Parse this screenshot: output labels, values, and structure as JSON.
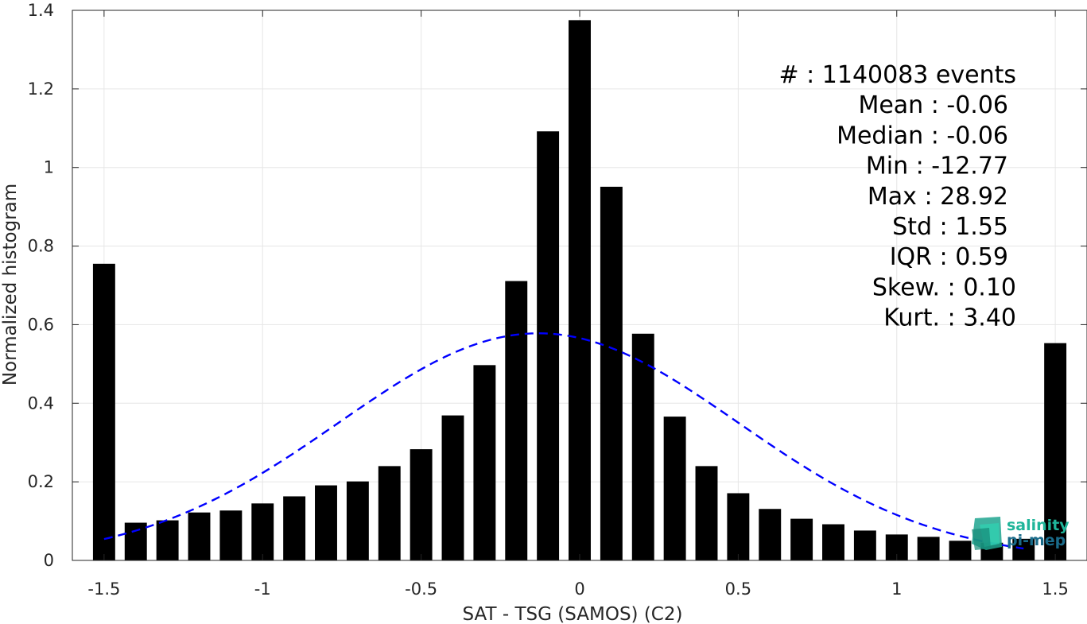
{
  "chart_data": {
    "type": "bar",
    "xlabel": "SAT - TSG (SAMOS) (C2)",
    "ylabel": "Normalized histogram",
    "xlim": [
      -1.6,
      1.6
    ],
    "ylim": [
      0,
      1.4
    ],
    "grid": true,
    "bin_width": 0.1,
    "x_ticks": [
      -1.5,
      -1,
      -0.5,
      0,
      0.5,
      1,
      1.5
    ],
    "x_tick_labels": [
      "-1.5",
      "-1",
      "-0.5",
      "0",
      "0.5",
      "1",
      "1.5"
    ],
    "y_ticks": [
      0,
      0.2,
      0.4,
      0.6,
      0.8,
      1.0,
      1.2,
      1.4
    ],
    "y_tick_labels": [
      "0",
      "0.2",
      "0.4",
      "0.6",
      "0.8",
      "1",
      "1.2",
      "1.4"
    ],
    "x": [
      -1.5,
      -1.4,
      -1.3,
      -1.2,
      -1.1,
      -1.0,
      -0.9,
      -0.8,
      -0.7,
      -0.6,
      -0.5,
      -0.4,
      -0.3,
      -0.2,
      -0.1,
      0.0,
      0.1,
      0.2,
      0.3,
      0.4,
      0.5,
      0.6,
      0.7,
      0.8,
      0.9,
      1.0,
      1.1,
      1.2,
      1.3,
      1.4,
      1.5
    ],
    "values": [
      0.755,
      0.096,
      0.102,
      0.122,
      0.127,
      0.145,
      0.163,
      0.191,
      0.201,
      0.24,
      0.283,
      0.369,
      0.497,
      0.711,
      1.092,
      1.375,
      0.951,
      0.577,
      0.366,
      0.24,
      0.171,
      0.131,
      0.106,
      0.092,
      0.076,
      0.066,
      0.06,
      0.05,
      0.045,
      0.055,
      0.553
    ],
    "bar_color": "#000000",
    "fit_curve": {
      "style": "dashed",
      "color": "#0000ff",
      "mean": -0.13,
      "std": 0.63,
      "peak": 0.578,
      "x_range": [
        -1.5,
        1.4
      ]
    },
    "stats": [
      "#  : 1140083 events",
      "Mean : -0.06",
      "Median : -0.06",
      "Min : -12.77",
      "Max : 28.92",
      "Std : 1.55",
      "IQR : 0.59",
      "Skew. : 0.10",
      "Kurt. : 3.40"
    ]
  },
  "logo": {
    "line1": "salinity",
    "line2": "pi-mep",
    "color_text1": "#1fb59a",
    "color_text2": "#1a6b8a",
    "color_icon": "#1fa58f"
  }
}
